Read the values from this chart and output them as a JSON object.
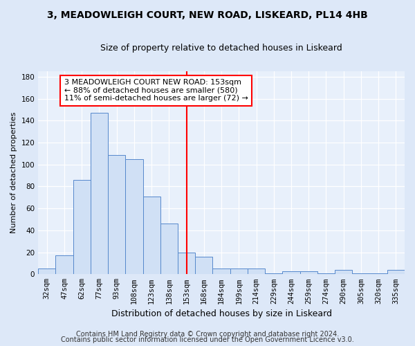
{
  "title1": "3, MEADOWLEIGH COURT, NEW ROAD, LISKEARD, PL14 4HB",
  "title2": "Size of property relative to detached houses in Liskeard",
  "xlabel": "Distribution of detached houses by size in Liskeard",
  "ylabel": "Number of detached properties",
  "categories": [
    "32sqm",
    "47sqm",
    "62sqm",
    "77sqm",
    "93sqm",
    "108sqm",
    "123sqm",
    "138sqm",
    "153sqm",
    "168sqm",
    "184sqm",
    "199sqm",
    "214sqm",
    "229sqm",
    "244sqm",
    "259sqm",
    "274sqm",
    "290sqm",
    "305sqm",
    "320sqm",
    "335sqm"
  ],
  "values": [
    5,
    17,
    86,
    147,
    109,
    105,
    71,
    46,
    20,
    16,
    5,
    5,
    5,
    1,
    3,
    3,
    1,
    4,
    1,
    1,
    4
  ],
  "bar_color": "#d0e0f5",
  "bar_edge_color": "#5588cc",
  "vline_x_idx": 8,
  "vline_color": "red",
  "annotation_text": "3 MEADOWLEIGH COURT NEW ROAD: 153sqm\n← 88% of detached houses are smaller (580)\n11% of semi-detached houses are larger (72) →",
  "annotation_box_color": "white",
  "annotation_box_edge": "red",
  "ylim": [
    0,
    185
  ],
  "yticks": [
    0,
    20,
    40,
    60,
    80,
    100,
    120,
    140,
    160,
    180
  ],
  "footer1": "Contains HM Land Registry data © Crown copyright and database right 2024.",
  "footer2": "Contains public sector information licensed under the Open Government Licence v3.0.",
  "bg_color": "#dde8f8",
  "plot_bg_color": "#e8f0fb",
  "grid_color": "#ffffff",
  "title_fontsize": 10,
  "subtitle_fontsize": 9,
  "tick_fontsize": 7.5,
  "ylabel_fontsize": 8,
  "xlabel_fontsize": 9,
  "footer_fontsize": 7,
  "annot_fontsize": 8
}
